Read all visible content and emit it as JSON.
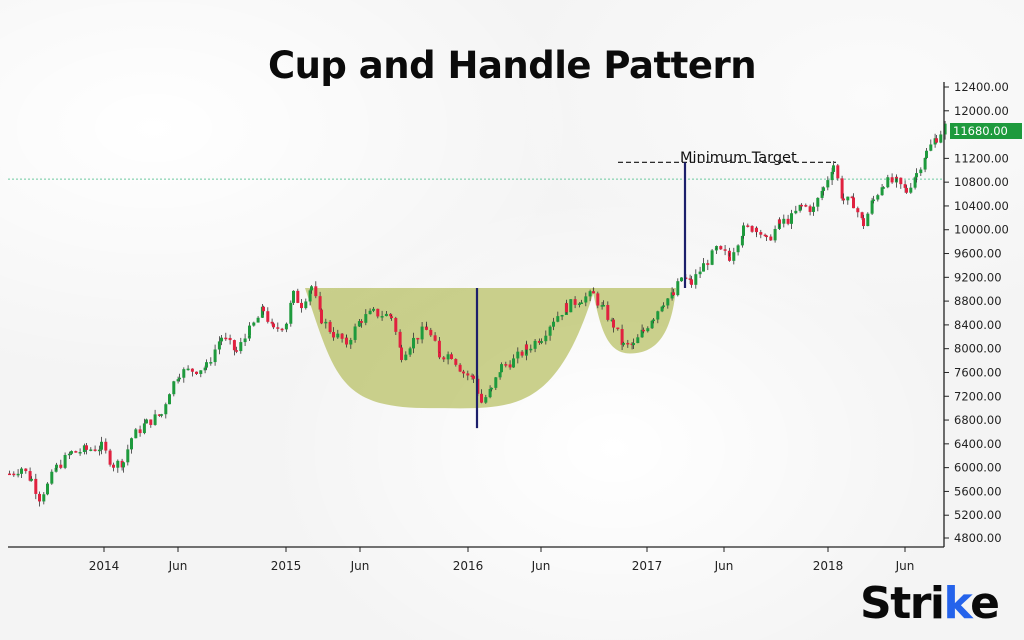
{
  "title": "Cup and Handle Pattern",
  "annotation": "Minimum Target",
  "current_price_label": "11680.00",
  "brand": {
    "prefix": "Stri",
    "accent_letter": "k",
    "suffix": "e"
  },
  "colors": {
    "up": "#1e9a3d",
    "down": "#e0213f",
    "cup_fill": "#b5bd5c",
    "cup_opacity": 0.7,
    "target_line": "#1c1f6b",
    "dotted_line": "#6cc9a0",
    "axis": "#222222",
    "badge": "#1e9a3d",
    "accent": "#2563eb"
  },
  "chart_data": {
    "type": "candlestick",
    "title": "Cup and Handle Pattern",
    "xlabel": "",
    "ylabel": "",
    "ylim": [
      4800,
      12400
    ],
    "yticks": [
      "12400.00",
      "12000.00",
      "11680.00",
      "11200.00",
      "10800.00",
      "10400.00",
      "10000.00",
      "9600.00",
      "9200.00",
      "8800.00",
      "8400.00",
      "8000.00",
      "7600.00",
      "7200.00",
      "6800.00",
      "6400.00",
      "6000.00",
      "5600.00",
      "5200.00",
      "4800.00"
    ],
    "xticks": [
      {
        "label": "2014",
        "x": 104
      },
      {
        "label": "Jun",
        "x": 178
      },
      {
        "label": "2015",
        "x": 286
      },
      {
        "label": "Jun",
        "x": 360
      },
      {
        "label": "2016",
        "x": 468
      },
      {
        "label": "Jun",
        "x": 541
      },
      {
        "label": "2017",
        "x": 647
      },
      {
        "label": "Jun",
        "x": 724
      },
      {
        "label": "2018",
        "x": 828
      },
      {
        "label": "Jun",
        "x": 905
      }
    ],
    "grid": false,
    "legend": "none",
    "resistance_level": 10850,
    "minimum_target_level": 11100,
    "cup": {
      "rim": 9020,
      "bottom": 7000,
      "x_start": 305,
      "x_end": 595
    },
    "handle": {
      "rim": 9020,
      "bottom": 7920,
      "x_start": 592,
      "x_end": 676
    },
    "target_segments": [
      {
        "x": 477,
        "from": 9020,
        "to": 7000
      },
      {
        "x": 685,
        "from": 11100,
        "to": 9020
      }
    ],
    "price_path": [
      [
        8,
        5900
      ],
      [
        20,
        6000
      ],
      [
        30,
        5800
      ],
      [
        38,
        5500
      ],
      [
        46,
        5700
      ],
      [
        55,
        6000
      ],
      [
        70,
        6250
      ],
      [
        85,
        6300
      ],
      [
        100,
        6350
      ],
      [
        112,
        6050
      ],
      [
        122,
        6100
      ],
      [
        130,
        6500
      ],
      [
        145,
        6750
      ],
      [
        160,
        6900
      ],
      [
        168,
        7300
      ],
      [
        178,
        7600
      ],
      [
        195,
        7650
      ],
      [
        205,
        7700
      ],
      [
        220,
        8200
      ],
      [
        235,
        7950
      ],
      [
        248,
        8300
      ],
      [
        262,
        8650
      ],
      [
        272,
        8300
      ],
      [
        285,
        8450
      ],
      [
        292,
        8900
      ],
      [
        300,
        8750
      ],
      [
        310,
        9050
      ],
      [
        320,
        8500
      ],
      [
        332,
        8250
      ],
      [
        345,
        8100
      ],
      [
        360,
        8500
      ],
      [
        372,
        8600
      ],
      [
        390,
        8550
      ],
      [
        400,
        7900
      ],
      [
        412,
        8150
      ],
      [
        425,
        8350
      ],
      [
        438,
        7900
      ],
      [
        450,
        7900
      ],
      [
        462,
        7600
      ],
      [
        472,
        7500
      ],
      [
        480,
        7100
      ],
      [
        490,
        7300
      ],
      [
        500,
        7700
      ],
      [
        512,
        7800
      ],
      [
        525,
        8000
      ],
      [
        540,
        8200
      ],
      [
        552,
        8500
      ],
      [
        565,
        8700
      ],
      [
        580,
        8850
      ],
      [
        592,
        8900
      ],
      [
        602,
        8650
      ],
      [
        612,
        8400
      ],
      [
        622,
        8050
      ],
      [
        632,
        8050
      ],
      [
        642,
        8300
      ],
      [
        652,
        8550
      ],
      [
        662,
        8800
      ],
      [
        672,
        8900
      ],
      [
        680,
        9200
      ],
      [
        690,
        9100
      ],
      [
        702,
        9400
      ],
      [
        715,
        9650
      ],
      [
        728,
        9550
      ],
      [
        742,
        10000
      ],
      [
        755,
        10050
      ],
      [
        765,
        9800
      ],
      [
        778,
        10100
      ],
      [
        790,
        10200
      ],
      [
        800,
        10400
      ],
      [
        812,
        10350
      ],
      [
        822,
        10700
      ],
      [
        832,
        11100
      ],
      [
        842,
        10500
      ],
      [
        852,
        10450
      ],
      [
        862,
        10100
      ],
      [
        872,
        10500
      ],
      [
        882,
        10800
      ],
      [
        895,
        10800
      ],
      [
        905,
        10650
      ],
      [
        915,
        10950
      ],
      [
        925,
        11300
      ],
      [
        935,
        11550
      ],
      [
        944,
        11750
      ]
    ]
  }
}
